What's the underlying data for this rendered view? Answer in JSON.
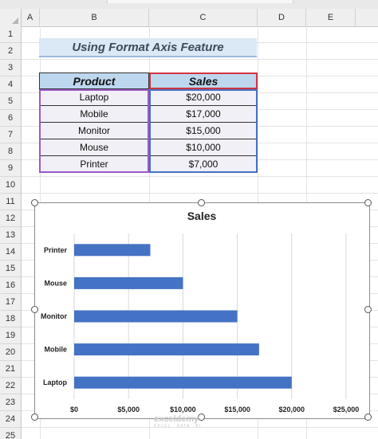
{
  "columns": [
    "A",
    "B",
    "C",
    "D",
    "E"
  ],
  "rows": [
    "1",
    "2",
    "3",
    "4",
    "5",
    "6",
    "7",
    "8",
    "9",
    "10",
    "11",
    "12",
    "13",
    "14",
    "15",
    "16",
    "17",
    "18",
    "19",
    "20",
    "21",
    "22",
    "23",
    "24",
    "25"
  ],
  "sheet_title": "Using Format Axis Feature",
  "table": {
    "headers": [
      "Product",
      "Sales"
    ],
    "rows": [
      {
        "product": "Laptop",
        "sales": "$20,000"
      },
      {
        "product": "Mobile",
        "sales": "$17,000"
      },
      {
        "product": "Monitor",
        "sales": "$15,000"
      },
      {
        "product": "Mouse",
        "sales": "$10,000"
      },
      {
        "product": "Printer",
        "sales": "$7,000"
      }
    ]
  },
  "watermark": {
    "name": "exceldemy",
    "tagline": "EXCEL · DATA · BI"
  },
  "colors": {
    "bar": "#4472c4",
    "header_fill": "#bdd7ee",
    "title_fill": "#dbe8f5"
  },
  "chart_data": {
    "type": "bar",
    "orientation": "horizontal",
    "title": "Sales",
    "categories": [
      "Laptop",
      "Mobile",
      "Monitor",
      "Mouse",
      "Printer"
    ],
    "values": [
      20000,
      17000,
      15000,
      10000,
      7000
    ],
    "xlim": [
      0,
      25000
    ],
    "x_ticks": [
      0,
      5000,
      10000,
      15000,
      20000,
      25000
    ],
    "x_tick_labels": [
      "$0",
      "$5,000",
      "$10,000",
      "$15,000",
      "$20,000",
      "$25,000"
    ],
    "grid": true,
    "legend": "none"
  }
}
